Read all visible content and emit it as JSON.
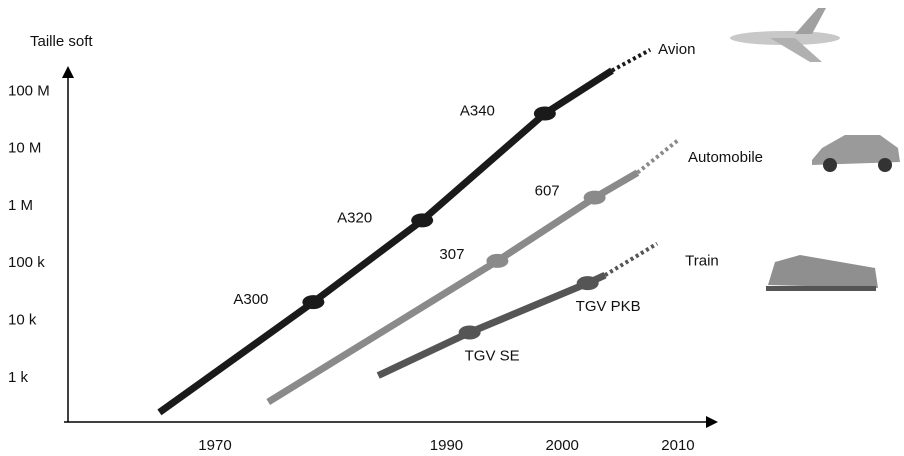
{
  "chart_data": {
    "type": "line",
    "ylabel": "Taille soft",
    "log_y": true,
    "xlim": [
      1957.3,
      2013.2
    ],
    "xticks": [
      1970,
      1990,
      2000,
      2010
    ],
    "ylim": [
      170,
      1000000000
    ],
    "yticks": [
      {
        "value": 1000,
        "label": "1 k"
      },
      {
        "value": 10000,
        "label": "10 k"
      },
      {
        "value": 100000,
        "label": "100 k"
      },
      {
        "value": 1000000,
        "label": "1 M"
      },
      {
        "value": 10000000,
        "label": "10 M"
      },
      {
        "value": 100000000,
        "label": "100 M"
      }
    ],
    "series": [
      {
        "name": "Avion",
        "color": "#1a1a1a",
        "x": [
          1965.2,
          1978.5,
          1987.9,
          1998.5,
          2004.3
        ],
        "values": [
          250,
          21000,
          560000,
          41000000,
          230000000
        ],
        "projection": {
          "x": [
            2004.3,
            2007.6
          ],
          "values": [
            230000000,
            530000000
          ]
        },
        "points": [
          {
            "label": "A300",
            "x": 1978.5,
            "value": 21000
          },
          {
            "label": "A320",
            "x": 1987.9,
            "value": 560000
          },
          {
            "label": "A340",
            "x": 1998.5,
            "value": 41000000
          }
        ]
      },
      {
        "name": "Automobile",
        "color": "#8a8a8a",
        "x": [
          1974.6,
          1994.4,
          2002.8,
          2006.5
        ],
        "values": [
          380,
          110000,
          1400000,
          3800000
        ],
        "projection": {
          "x": [
            2006.5,
            2010
          ],
          "values": [
            3800000,
            14000000
          ]
        },
        "points": [
          {
            "label": "307",
            "x": 1994.4,
            "value": 110000
          },
          {
            "label": "607",
            "x": 2002.8,
            "value": 1400000
          }
        ]
      },
      {
        "name": "Train",
        "color": "#555555",
        "x": [
          1984.1,
          1992,
          2002.2,
          2003.7
        ],
        "values": [
          1100,
          6200,
          45000,
          62000
        ],
        "projection": {
          "x": [
            2003.7,
            2008.2
          ],
          "values": [
            62000,
            220000
          ]
        },
        "points": [
          {
            "label": "TGV SE",
            "x": 1992,
            "value": 6200
          },
          {
            "label": "TGV PKB",
            "x": 2002.2,
            "value": 45000
          }
        ]
      }
    ]
  }
}
